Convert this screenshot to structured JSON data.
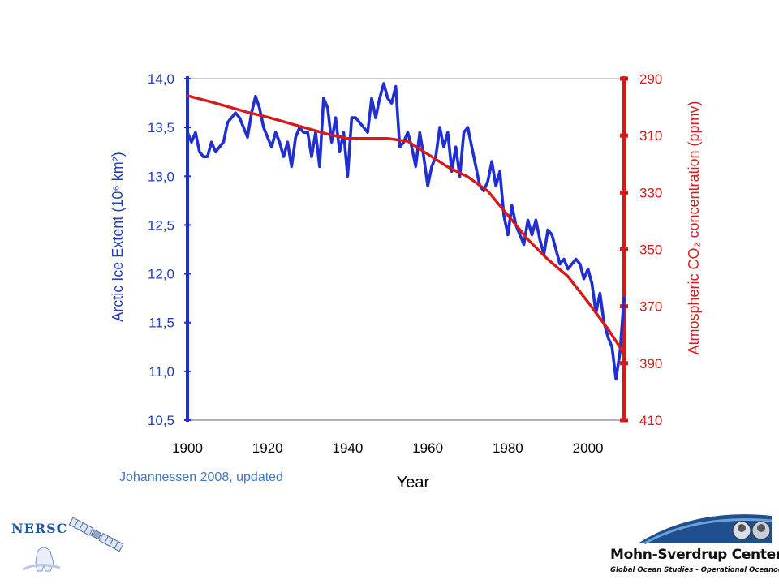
{
  "chart_data": {
    "type": "line",
    "xlabel": "Year",
    "ylabel_left": "Arctic Ice Extent (10⁶ km²)",
    "ylabel_right": "Atmospheric CO₂ concentration (ppmv)",
    "xlim": [
      1900,
      2009
    ],
    "ylim_left": [
      10.5,
      14.0
    ],
    "ylim_right": [
      410,
      290
    ],
    "x_ticks": [
      "1900",
      "1920",
      "1940",
      "1960",
      "1980",
      "2000"
    ],
    "y_left_ticks": [
      "14,0",
      "13,5",
      "13,0",
      "12,5",
      "12,0",
      "11,5",
      "11,0",
      "10,5"
    ],
    "y_right_ticks": [
      "290",
      "310",
      "330",
      "350",
      "370",
      "390",
      "410"
    ],
    "legend": "none",
    "grid": false,
    "series": [
      {
        "name": "",
        "axis": "left",
        "color": "#1f2fd0",
        "x": [
          1900,
          1901,
          1902,
          1903,
          1904,
          1905,
          1906,
          1907,
          1908,
          1909,
          1910,
          1911,
          1912,
          1913,
          1914,
          1915,
          1916,
          1917,
          1918,
          1919,
          1920,
          1921,
          1922,
          1923,
          1924,
          1925,
          1926,
          1927,
          1928,
          1929,
          1930,
          1931,
          1932,
          1933,
          1934,
          1935,
          1936,
          1937,
          1938,
          1939,
          1940,
          1941,
          1942,
          1943,
          1944,
          1945,
          1946,
          1947,
          1948,
          1949,
          1950,
          1951,
          1952,
          1953,
          1954,
          1955,
          1956,
          1957,
          1958,
          1959,
          1960,
          1961,
          1962,
          1963,
          1964,
          1965,
          1966,
          1967,
          1968,
          1969,
          1970,
          1971,
          1972,
          1973,
          1974,
          1975,
          1976,
          1977,
          1978,
          1979,
          1980,
          1981,
          1982,
          1983,
          1984,
          1985,
          1986,
          1987,
          1988,
          1989,
          1990,
          1991,
          1992,
          1993,
          1994,
          1995,
          1996,
          1997,
          1998,
          1999,
          2000,
          2001,
          2002,
          2003,
          2004,
          2005,
          2006,
          2007,
          2008,
          2009
        ],
        "values": [
          13.45,
          13.35,
          13.45,
          13.25,
          13.2,
          13.2,
          13.35,
          13.25,
          13.3,
          13.35,
          13.55,
          13.6,
          13.65,
          13.6,
          13.5,
          13.4,
          13.65,
          13.82,
          13.7,
          13.5,
          13.4,
          13.3,
          13.45,
          13.35,
          13.2,
          13.35,
          13.1,
          13.4,
          13.5,
          13.45,
          13.45,
          13.2,
          13.45,
          13.1,
          13.8,
          13.7,
          13.35,
          13.6,
          13.25,
          13.45,
          13.0,
          13.6,
          13.6,
          13.55,
          13.5,
          13.45,
          13.8,
          13.6,
          13.8,
          13.95,
          13.8,
          13.75,
          13.92,
          13.3,
          13.35,
          13.45,
          13.3,
          13.1,
          13.45,
          13.2,
          12.9,
          13.1,
          13.2,
          13.5,
          13.3,
          13.45,
          13.05,
          13.3,
          13.0,
          13.45,
          13.5,
          13.3,
          13.1,
          12.9,
          12.85,
          12.95,
          13.15,
          12.9,
          13.05,
          12.6,
          12.4,
          12.7,
          12.5,
          12.4,
          12.3,
          12.55,
          12.4,
          12.55,
          12.35,
          12.2,
          12.45,
          12.4,
          12.25,
          12.1,
          12.15,
          12.05,
          12.1,
          12.15,
          12.1,
          11.95,
          12.05,
          11.9,
          11.6,
          11.8,
          11.5,
          11.35,
          11.25,
          10.92,
          11.2,
          11.75
        ]
      },
      {
        "name": "",
        "axis": "right",
        "color": "#d61a1a",
        "x": [
          1900,
          1905,
          1910,
          1915,
          1920,
          1925,
          1930,
          1935,
          1940,
          1945,
          1950,
          1955,
          1960,
          1965,
          1970,
          1975,
          1980,
          1985,
          1990,
          1995,
          2000,
          2005,
          2009
        ],
        "values": [
          296,
          297.8,
          299.8,
          301.8,
          303.5,
          305.5,
          307.5,
          309.5,
          311,
          311,
          311,
          312,
          316.5,
          321,
          324.5,
          329.5,
          338,
          346.5,
          353.5,
          359.5,
          368.5,
          378,
          386.5
        ]
      }
    ],
    "annotation": "Johannessen 2008, updated"
  },
  "logos": {
    "nersc_text": "NERSC",
    "msc_name": "Mohn-Sverdrup Center",
    "msc_subtitle": "Global Ocean Studies - Operational Oceanography"
  },
  "colors": {
    "left_axis": "#1f2fd0",
    "right_axis": "#d61a1a",
    "label_blue": "#1f3fbf",
    "label_red": "#d21f1f"
  }
}
